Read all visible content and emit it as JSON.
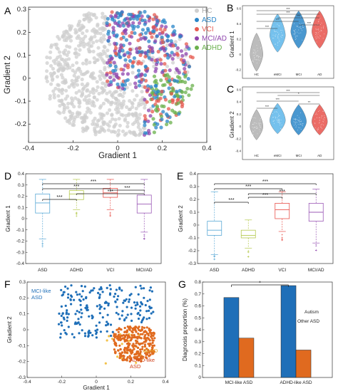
{
  "panels": {
    "A": "A",
    "B": "B",
    "C": "C",
    "D": "D",
    "E": "E",
    "F": "F",
    "G": "G"
  },
  "colors": {
    "HC": "#cfcfcf",
    "ASD": "#2a86c8",
    "VCI": "#e65a50",
    "MCI/AD": "#8e44ad",
    "ADHD": "#6ab04c",
    "blue": "#1f6fb8",
    "orange": "#e06a1f"
  },
  "chart_data": [
    {
      "id": "A",
      "type": "scatter",
      "xlabel": "Gradient 1",
      "ylabel": "Gradient 2",
      "xlim": [
        -0.4,
        0.4
      ],
      "ylim": [
        -0.28,
        0.31
      ],
      "xticks": [
        "-0.4",
        "-0.2",
        "0",
        "0.2",
        "0.4"
      ],
      "yticks": [
        "0.3",
        "0.2",
        "0.1",
        "0",
        "-0.1",
        "-0.2"
      ],
      "legend": [
        "HC",
        "ASD",
        "VCI",
        "MCI/AD",
        "ADHD"
      ],
      "legend_placement": "top-right",
      "grid": false
    },
    {
      "id": "B",
      "type": "violin",
      "xlabel": "",
      "ylabel": "Gradient 1",
      "categories": [
        "HC",
        "eMCI",
        "MCI",
        "AD"
      ],
      "ylim": [
        -0.2,
        0.6
      ],
      "yticks": [
        "0.6",
        "0.4",
        "0.2",
        "0",
        "-0.2"
      ],
      "medians": [
        0.0,
        0.25,
        0.3,
        0.3
      ],
      "significance": [
        "***",
        "***",
        "***",
        "***",
        "***",
        "***"
      ]
    },
    {
      "id": "C",
      "type": "violin",
      "xlabel": "",
      "ylabel": "Gradient 2",
      "categories": [
        "HC",
        "eMCI",
        "MCI",
        "AD"
      ],
      "ylim": [
        -0.4,
        0.6
      ],
      "yticks": [
        "0.6",
        "0.4",
        "0.2",
        "0",
        "-0.2",
        "-0.4"
      ],
      "medians": [
        0.0,
        0.1,
        0.08,
        0.08
      ],
      "significance": [
        "***",
        "*",
        "***",
        "**",
        "***"
      ]
    },
    {
      "id": "D",
      "type": "box",
      "xlabel": "",
      "ylabel": "Gradient 1",
      "categories": [
        "ASD",
        "ADHD",
        "VCI",
        "MCI/AD"
      ],
      "ylim": [
        -0.4,
        0.4
      ],
      "yticks": [
        "0.4",
        "0.3",
        "0.2",
        "0.1",
        "0",
        "-0.1",
        "-0.2",
        "-0.3",
        "-0.4"
      ],
      "boxes": [
        {
          "name": "ASD",
          "q1": 0.05,
          "median": 0.14,
          "q3": 0.22,
          "min": -0.18,
          "max": 0.35
        },
        {
          "name": "ADHD",
          "q1": 0.17,
          "median": 0.22,
          "q3": 0.25,
          "min": 0.08,
          "max": 0.35
        },
        {
          "name": "VCI",
          "q1": 0.19,
          "median": 0.23,
          "q3": 0.27,
          "min": 0.08,
          "max": 0.35
        },
        {
          "name": "MCI/AD",
          "q1": 0.05,
          "median": 0.13,
          "q3": 0.21,
          "min": -0.12,
          "max": 0.35
        }
      ],
      "significance": [
        "***",
        "***",
        "***",
        "***",
        "***"
      ]
    },
    {
      "id": "E",
      "type": "box",
      "xlabel": "",
      "ylabel": "Gradient 2",
      "categories": [
        "ASD",
        "ADHD",
        "VCI",
        "MCI/AD"
      ],
      "ylim": [
        -0.3,
        0.4
      ],
      "yticks": [
        "0.4",
        "0.3",
        "0.2",
        "0.1",
        "0",
        "-0.1",
        "-0.2",
        "-0.3"
      ],
      "boxes": [
        {
          "name": "ASD",
          "q1": -0.08,
          "median": -0.04,
          "q3": 0.03,
          "min": -0.23,
          "max": 0.26
        },
        {
          "name": "ADHD",
          "q1": -0.1,
          "median": -0.08,
          "q3": -0.04,
          "min": -0.18,
          "max": 0.04
        },
        {
          "name": "VCI",
          "q1": 0.05,
          "median": 0.12,
          "q3": 0.17,
          "min": -0.05,
          "max": 0.26
        },
        {
          "name": "MCI/AD",
          "q1": 0.03,
          "median": 0.1,
          "q3": 0.17,
          "min": -0.14,
          "max": 0.28
        }
      ],
      "significance": [
        "***",
        "***",
        "***",
        "***",
        "***"
      ]
    },
    {
      "id": "F",
      "type": "scatter",
      "xlabel": "Gradient 1",
      "ylabel": "Gradient 2",
      "xlim": [
        -0.4,
        0.4
      ],
      "ylim": [
        -0.3,
        0.3
      ],
      "xticks": [
        "-0.4",
        "-0.2",
        "0",
        "0.2",
        "0.4"
      ],
      "yticks": [
        "0.3",
        "0.2",
        "0.1",
        "0",
        "-0.1",
        "-0.2",
        "-0.3"
      ],
      "annotations": [
        "MCI-like\nASD",
        "ADHD",
        "ADHD-like\nASD"
      ]
    },
    {
      "id": "G",
      "type": "bar",
      "xlabel": "",
      "ylabel": "Diagnosis proportion (%)",
      "categories": [
        "MCI-like ASD",
        "ADHD-like ASD"
      ],
      "series": [
        {
          "name": "Autism",
          "values": [
            0.67,
            0.77
          ]
        },
        {
          "name": "Other ASD",
          "values": [
            0.33,
            0.23
          ]
        }
      ],
      "ylim": [
        0,
        0.8
      ],
      "yticks": [
        "0.8",
        "0.7",
        "0.6",
        "0.5",
        "0.4",
        "0.3",
        "0.2",
        "0.1",
        "0"
      ],
      "significance": [
        "*"
      ]
    }
  ],
  "text": {
    "f_mci": "MCI-like",
    "f_asd1": "ASD",
    "f_adhd": "ADHD",
    "f_adhdlike": "ADHD-like",
    "f_asd2": "ASD"
  }
}
